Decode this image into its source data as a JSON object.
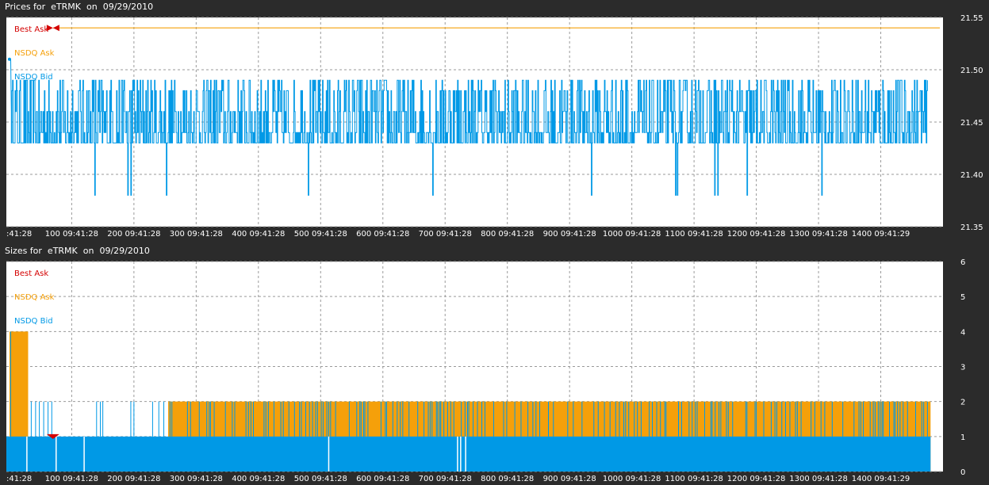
{
  "prices_panel": {
    "title": "Prices for  eTRMK  on  09/29/2010"
  },
  "sizes_panel": {
    "title": "Sizes for  eTRMK  on  09/29/2010"
  },
  "colors": {
    "best_ask": "#d40000",
    "nsdq_ask": "#f5a00a",
    "nsdq_bid": "#0099e6",
    "background": "#2b2b2b",
    "plot": "#ffffff",
    "grid": "#9a9a9a"
  },
  "chart_data": [
    {
      "type": "line",
      "title": "Prices for  eTRMK  on  09/29/2010",
      "x_tick_labels": [
        ":41:28",
        "100 09:41:28",
        "200 09:41:28",
        "300 09:41:28",
        "400 09:41:28",
        "500 09:41:28",
        "600 09:41:28",
        "700 09:41:28",
        "800 09:41:28",
        "900 09:41:28",
        "1000 09:41:28",
        "1100 09:41:28",
        "1200 09:41:28",
        "1300 09:41:28",
        "1400 09:41:29"
      ],
      "x_ticks": [
        0,
        100,
        200,
        300,
        400,
        500,
        600,
        700,
        800,
        900,
        1000,
        1100,
        1200,
        1300,
        1400
      ],
      "xlim": [
        -5,
        1500
      ],
      "ylim": [
        21.35,
        21.55
      ],
      "y_ticks": [
        21.35,
        21.4,
        21.45,
        21.5,
        21.55
      ],
      "y_tick_labels": [
        "21.35",
        "21.40",
        "21.45",
        "21.50",
        "21.55"
      ],
      "grid": true,
      "legend": "top-left",
      "series": [
        {
          "name": "Best Ask",
          "color": "#d40000",
          "flat_value": 21.54,
          "x_start": 70
        },
        {
          "name": "NSDQ Ask",
          "color": "#f5a00a",
          "flat_value": 21.54,
          "x_start": 70
        },
        {
          "name": "NSDQ Bid",
          "color": "#0099e6",
          "range": [
            21.43,
            21.49
          ],
          "dips": [
            0,
            137,
            190,
            195,
            252,
            480,
            680,
            935,
            1070,
            1073,
            1133,
            1138,
            1185,
            1305
          ],
          "dip_value": 21.38,
          "start_value": 21.51
        }
      ]
    },
    {
      "type": "area",
      "title": "Sizes for  eTRMK  on  09/29/2010",
      "x_tick_labels": [
        ":41:28",
        "100 09:41:28",
        "200 09:41:28",
        "300 09:41:28",
        "400 09:41:28",
        "500 09:41:28",
        "600 09:41:28",
        "700 09:41:28",
        "800 09:41:28",
        "900 09:41:28",
        "1000 09:41:28",
        "1100 09:41:28",
        "1200 09:41:28",
        "1300 09:41:28",
        "1400 09:41:29"
      ],
      "x_ticks": [
        0,
        100,
        200,
        300,
        400,
        500,
        600,
        700,
        800,
        900,
        1000,
        1100,
        1200,
        1300,
        1400
      ],
      "xlim": [
        -5,
        1500
      ],
      "ylim": [
        0,
        6
      ],
      "y_ticks": [
        0,
        1,
        2,
        3,
        4,
        5,
        6
      ],
      "y_tick_labels": [
        "0",
        "1",
        "2",
        "3",
        "4",
        "5",
        "6"
      ],
      "grid": true,
      "legend": "top-left",
      "series": [
        {
          "name": "Best Ask",
          "color": "#d40000"
        },
        {
          "name": "NSDQ Ask",
          "color": "#f5a00a",
          "segments": [
            [
              0,
              30,
              4
            ],
            [
              30,
              255,
              2
            ],
            [
              255,
              1480,
              2
            ]
          ]
        },
        {
          "name": "NSDQ Bid",
          "color": "#0099e6",
          "value": 1
        }
      ]
    }
  ],
  "legend_labels": [
    "Best Ask",
    "NSDQ Ask",
    "NSDQ Bid"
  ]
}
